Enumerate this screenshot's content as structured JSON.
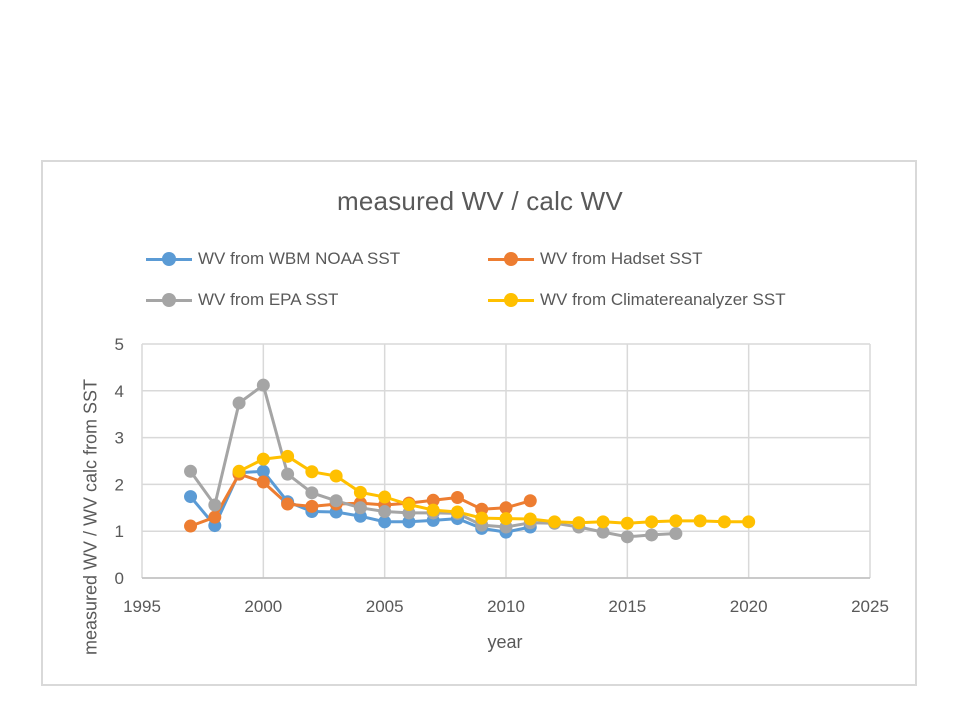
{
  "chart_data": {
    "type": "line",
    "title": "measured  WV / calc WV",
    "xlabel": "year",
    "ylabel": "measured WV / WV calc from SST",
    "xlim": [
      1995,
      2025
    ],
    "ylim": [
      0,
      5
    ],
    "xticks": [
      1995,
      2000,
      2005,
      2010,
      2015,
      2020,
      2025
    ],
    "yticks": [
      0,
      1,
      2,
      3,
      4,
      5
    ],
    "grid": true,
    "legend_position": "top",
    "series": [
      {
        "name": "WV from WBM NOAA  SST",
        "color": "#5b9bd5",
        "x": [
          1997,
          1998,
          1999,
          2000,
          2001,
          2002,
          2003,
          2004,
          2005,
          2006,
          2007,
          2008,
          2009,
          2010,
          2011
        ],
        "y": [
          1.74,
          1.12,
          2.25,
          2.28,
          1.63,
          1.42,
          1.41,
          1.32,
          1.2,
          1.2,
          1.23,
          1.27,
          1.06,
          0.98,
          1.09
        ]
      },
      {
        "name": "WV from Hadset SST",
        "color": "#ed7d31",
        "x": [
          1997,
          1998,
          1999,
          2000,
          2001,
          2002,
          2003,
          2004,
          2005,
          2006,
          2007,
          2008,
          2009,
          2010,
          2011
        ],
        "y": [
          1.11,
          1.3,
          2.22,
          2.05,
          1.58,
          1.53,
          1.58,
          1.6,
          1.56,
          1.6,
          1.66,
          1.72,
          1.47,
          1.5,
          1.65
        ]
      },
      {
        "name": "WV from EPA SST",
        "color": "#a5a5a5",
        "x": [
          1997,
          1998,
          1999,
          2000,
          2001,
          2002,
          2003,
          2004,
          2005,
          2006,
          2007,
          2008,
          2009,
          2010,
          2011,
          2012,
          2013,
          2014,
          2015,
          2016,
          2017
        ],
        "y": [
          2.28,
          1.56,
          3.74,
          4.12,
          2.22,
          1.82,
          1.65,
          1.5,
          1.42,
          1.39,
          1.39,
          1.38,
          1.13,
          1.09,
          1.18,
          1.17,
          1.09,
          0.98,
          0.88,
          0.92,
          0.95
        ]
      },
      {
        "name": "WV from Climatereanalyzer SST",
        "color": "#ffc000",
        "x": [
          1999,
          2000,
          2001,
          2002,
          2003,
          2004,
          2005,
          2006,
          2007,
          2008,
          2009,
          2010,
          2011,
          2012,
          2013,
          2014,
          2015,
          2016,
          2017,
          2018,
          2019,
          2020
        ],
        "y": [
          2.28,
          2.54,
          2.6,
          2.27,
          2.18,
          1.83,
          1.73,
          1.57,
          1.45,
          1.41,
          1.28,
          1.27,
          1.26,
          1.2,
          1.18,
          1.2,
          1.17,
          1.2,
          1.22,
          1.22,
          1.2,
          1.2
        ]
      }
    ]
  }
}
